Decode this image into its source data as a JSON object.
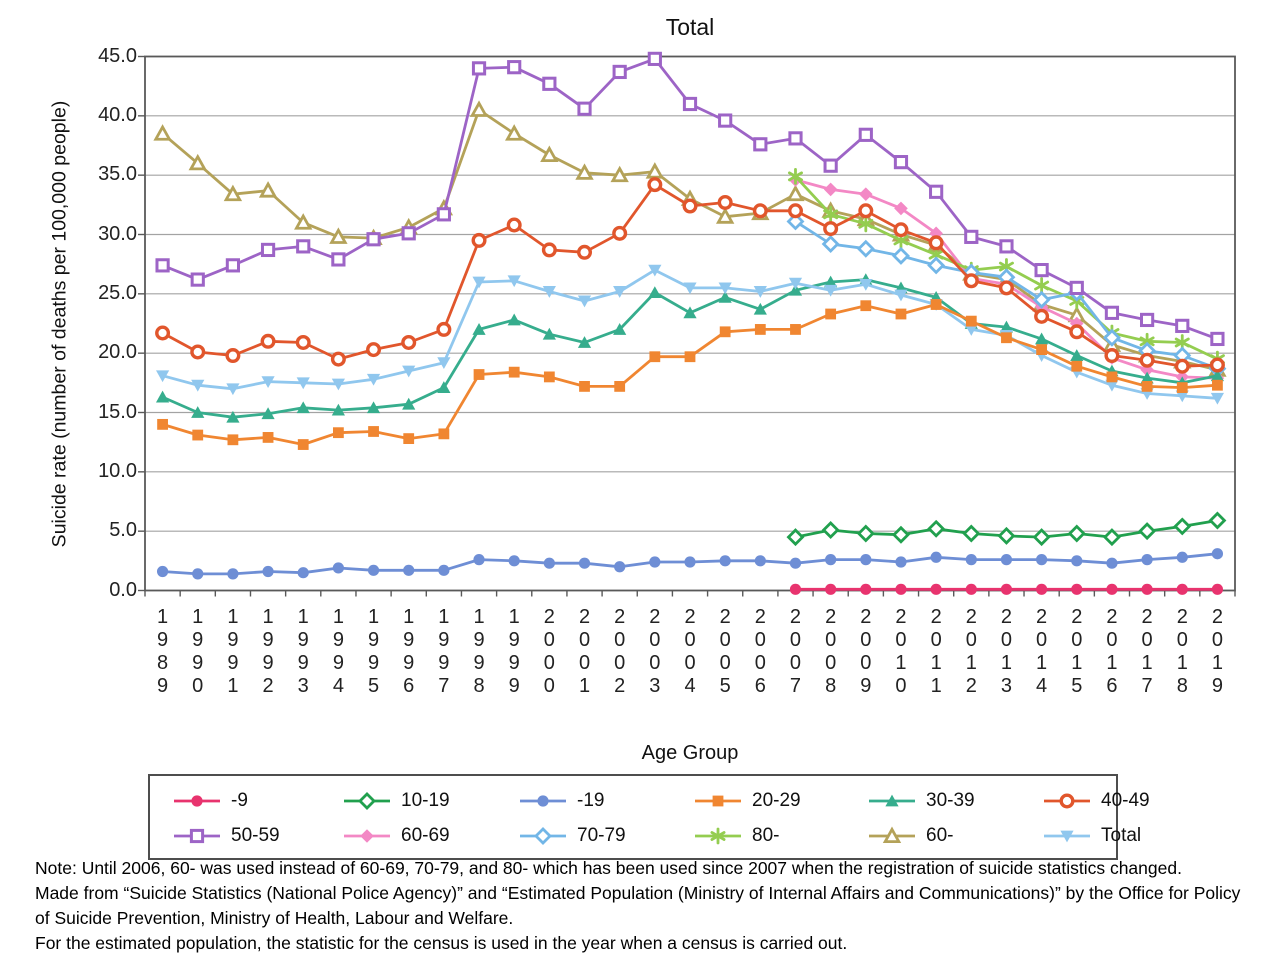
{
  "chart_data": {
    "type": "line",
    "title": "Total",
    "xlabel": "Age Group",
    "ylabel": "Suicide rate (number of deaths per 100,000 people)",
    "ylim": [
      0,
      45
    ],
    "ytick_step": 5,
    "grid": true,
    "legend_position": "bottom-box",
    "x": [
      1989,
      1990,
      1991,
      1992,
      1993,
      1994,
      1995,
      1996,
      1997,
      1998,
      1999,
      2000,
      2001,
      2002,
      2003,
      2004,
      2005,
      2006,
      2007,
      2008,
      2009,
      2010,
      2011,
      2012,
      2013,
      2014,
      2015,
      2016,
      2017,
      2018,
      2019
    ],
    "series": [
      {
        "name": "-9",
        "color": "#e8336e",
        "marker": "circle",
        "values": [
          null,
          null,
          null,
          null,
          null,
          null,
          null,
          null,
          null,
          null,
          null,
          null,
          null,
          null,
          null,
          null,
          null,
          null,
          0.1,
          0.1,
          0.1,
          0.1,
          0.1,
          0.1,
          0.1,
          0.1,
          0.1,
          0.1,
          0.1,
          0.1,
          0.1
        ]
      },
      {
        "name": "10-19",
        "color": "#21a04e",
        "marker": "diamond-open",
        "values": [
          null,
          null,
          null,
          null,
          null,
          null,
          null,
          null,
          null,
          null,
          null,
          null,
          null,
          null,
          null,
          null,
          null,
          null,
          4.5,
          5.1,
          4.8,
          4.7,
          5.2,
          4.8,
          4.6,
          4.5,
          4.8,
          4.5,
          5.0,
          5.4,
          5.9
        ]
      },
      {
        "name": "-19",
        "color": "#6e8ed5",
        "marker": "circle",
        "values": [
          1.6,
          1.4,
          1.4,
          1.6,
          1.5,
          1.9,
          1.7,
          1.7,
          1.7,
          2.6,
          2.5,
          2.3,
          2.3,
          2.0,
          2.4,
          2.4,
          2.5,
          2.5,
          2.3,
          2.6,
          2.6,
          2.4,
          2.8,
          2.6,
          2.6,
          2.6,
          2.5,
          2.3,
          2.6,
          2.8,
          3.1
        ]
      },
      {
        "name": "20-29",
        "color": "#f08631",
        "marker": "square",
        "values": [
          14.0,
          13.1,
          12.7,
          12.9,
          12.3,
          13.3,
          13.4,
          12.8,
          13.2,
          18.2,
          18.4,
          18.0,
          17.2,
          17.2,
          19.7,
          19.7,
          21.8,
          22.0,
          22.0,
          23.3,
          24.0,
          23.3,
          24.1,
          22.7,
          21.3,
          20.3,
          18.9,
          18.0,
          17.2,
          17.1,
          17.3
        ]
      },
      {
        "name": "30-39",
        "color": "#36ad8d",
        "marker": "triangle-up",
        "values": [
          16.3,
          15.0,
          14.6,
          14.9,
          15.4,
          15.2,
          15.4,
          15.7,
          17.1,
          22.0,
          22.8,
          21.6,
          20.9,
          22.0,
          25.1,
          23.4,
          24.7,
          23.7,
          25.3,
          26.0,
          26.2,
          25.5,
          24.7,
          22.5,
          22.2,
          21.2,
          19.8,
          18.5,
          17.9,
          17.5,
          18.1
        ]
      },
      {
        "name": "40-49",
        "color": "#e1562c",
        "marker": "circle-open",
        "values": [
          21.7,
          20.1,
          19.8,
          21.0,
          20.9,
          19.5,
          20.3,
          20.9,
          22.0,
          29.5,
          30.8,
          28.7,
          28.5,
          30.1,
          34.2,
          32.4,
          32.7,
          32.0,
          32.0,
          30.5,
          32.0,
          30.4,
          29.3,
          26.1,
          25.5,
          23.1,
          21.8,
          19.8,
          19.4,
          18.9,
          19.0
        ]
      },
      {
        "name": "50-59",
        "color": "#9d64c6",
        "marker": "square-open",
        "values": [
          27.4,
          26.2,
          27.4,
          28.7,
          29.0,
          27.9,
          29.6,
          30.1,
          31.7,
          44.0,
          44.1,
          42.7,
          40.6,
          43.7,
          44.8,
          41.0,
          39.6,
          37.6,
          38.1,
          35.8,
          38.4,
          36.1,
          33.6,
          29.8,
          29.0,
          27.0,
          25.5,
          23.4,
          22.8,
          22.3,
          21.2
        ]
      },
      {
        "name": "60-69",
        "color": "#f388c5",
        "marker": "diamond",
        "values": [
          null,
          null,
          null,
          null,
          null,
          null,
          null,
          null,
          null,
          null,
          null,
          null,
          null,
          null,
          null,
          null,
          null,
          null,
          34.6,
          33.8,
          33.4,
          32.2,
          30.1,
          26.3,
          25.8,
          23.9,
          22.5,
          19.6,
          18.6,
          18.0,
          17.9
        ]
      },
      {
        "name": "70-79",
        "color": "#72b6e7",
        "marker": "diamond-open",
        "values": [
          null,
          null,
          null,
          null,
          null,
          null,
          null,
          null,
          null,
          null,
          null,
          null,
          null,
          null,
          null,
          null,
          null,
          null,
          31.1,
          29.2,
          28.8,
          28.2,
          27.4,
          26.8,
          26.4,
          24.5,
          25.1,
          21.3,
          20.2,
          19.8,
          18.7
        ]
      },
      {
        "name": "80-",
        "color": "#94cd50",
        "marker": "asterisk",
        "values": [
          null,
          null,
          null,
          null,
          null,
          null,
          null,
          null,
          null,
          null,
          null,
          null,
          null,
          null,
          null,
          null,
          null,
          null,
          34.9,
          31.7,
          30.9,
          29.5,
          28.3,
          27.0,
          27.3,
          25.7,
          24.4,
          21.7,
          21.0,
          20.9,
          19.5
        ]
      },
      {
        "name": "60-",
        "color": "#b4a259",
        "marker": "triangle-up-open",
        "values": [
          38.5,
          36.0,
          33.4,
          33.7,
          31.0,
          29.8,
          29.7,
          30.6,
          32.2,
          40.5,
          38.5,
          36.7,
          35.2,
          35.0,
          35.3,
          33.0,
          31.5,
          31.8,
          33.4,
          32.0,
          31.3,
          30.0,
          29.1,
          26.7,
          26.2,
          24.1,
          23.2,
          20.7,
          19.8,
          19.3,
          18.6
        ]
      },
      {
        "name": "Total",
        "color": "#90c7ee",
        "marker": "triangle-down",
        "values": [
          18.1,
          17.3,
          17.0,
          17.6,
          17.5,
          17.4,
          17.8,
          18.5,
          19.2,
          26.0,
          26.1,
          25.2,
          24.4,
          25.2,
          27.0,
          25.5,
          25.5,
          25.2,
          25.9,
          25.3,
          25.8,
          24.9,
          24.1,
          22.0,
          21.5,
          19.8,
          18.4,
          17.3,
          16.6,
          16.4,
          16.2
        ]
      }
    ]
  },
  "notes": {
    "line1": "Note: Until 2006, 60- was used instead of 60-69, 70-79, and 80- which has been used since 2007 when the registration of suicide statistics changed.",
    "line2": "Made from “Suicide Statistics (National Police Agency)” and “Estimated Population (Ministry of Internal Affairs and Communications)” by the Office for Policy of Suicide Prevention, Ministry of Health, Labour and Welfare.",
    "line3": "For the estimated population, the statistic for the census is used in the year when a census is carried out."
  }
}
